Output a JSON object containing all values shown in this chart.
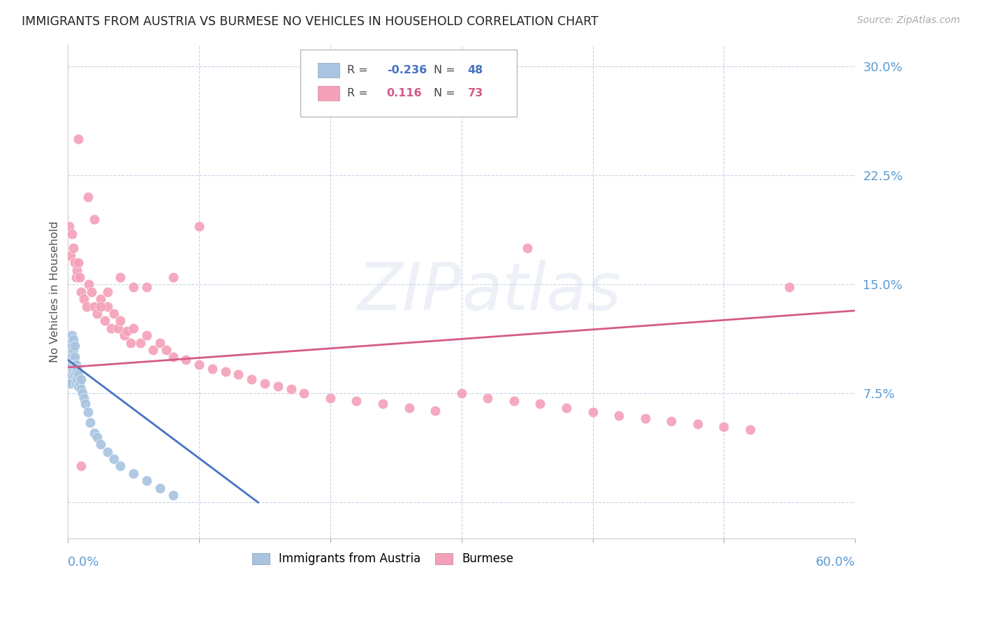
{
  "title": "IMMIGRANTS FROM AUSTRIA VS BURMESE NO VEHICLES IN HOUSEHOLD CORRELATION CHART",
  "source": "Source: ZipAtlas.com",
  "ylabel": "No Vehicles in Household",
  "yticks": [
    0.0,
    0.075,
    0.15,
    0.225,
    0.3
  ],
  "ytick_labels": [
    "",
    "7.5%",
    "15.0%",
    "22.5%",
    "30.0%"
  ],
  "xlim": [
    0.0,
    0.6
  ],
  "ylim": [
    -0.025,
    0.315
  ],
  "color_austria": "#a8c4e0",
  "color_burmese": "#f4a0b8",
  "color_austria_line": "#4472c4",
  "color_burmese_line": "#d45a8a",
  "color_yticks": "#5b9bd5",
  "austria_x": [
    0.001,
    0.001,
    0.001,
    0.001,
    0.002,
    0.002,
    0.002,
    0.002,
    0.002,
    0.002,
    0.003,
    0.003,
    0.003,
    0.003,
    0.003,
    0.004,
    0.004,
    0.004,
    0.004,
    0.005,
    0.005,
    0.005,
    0.005,
    0.006,
    0.006,
    0.006,
    0.007,
    0.007,
    0.008,
    0.008,
    0.009,
    0.01,
    0.01,
    0.011,
    0.012,
    0.013,
    0.015,
    0.017,
    0.02,
    0.022,
    0.025,
    0.03,
    0.035,
    0.04,
    0.05,
    0.06,
    0.07,
    0.08
  ],
  "austria_y": [
    0.1,
    0.095,
    0.09,
    0.085,
    0.11,
    0.105,
    0.098,
    0.092,
    0.088,
    0.082,
    0.115,
    0.108,
    0.1,
    0.095,
    0.088,
    0.112,
    0.105,
    0.098,
    0.09,
    0.108,
    0.1,
    0.095,
    0.088,
    0.095,
    0.09,
    0.082,
    0.092,
    0.085,
    0.088,
    0.08,
    0.082,
    0.085,
    0.078,
    0.075,
    0.072,
    0.068,
    0.062,
    0.055,
    0.048,
    0.045,
    0.04,
    0.035,
    0.03,
    0.025,
    0.02,
    0.015,
    0.01,
    0.005
  ],
  "burmese_x": [
    0.001,
    0.002,
    0.003,
    0.004,
    0.005,
    0.006,
    0.007,
    0.008,
    0.009,
    0.01,
    0.012,
    0.014,
    0.016,
    0.018,
    0.02,
    0.022,
    0.025,
    0.028,
    0.03,
    0.033,
    0.035,
    0.038,
    0.04,
    0.043,
    0.045,
    0.048,
    0.05,
    0.055,
    0.06,
    0.065,
    0.07,
    0.075,
    0.08,
    0.09,
    0.1,
    0.11,
    0.12,
    0.13,
    0.14,
    0.15,
    0.16,
    0.17,
    0.18,
    0.2,
    0.22,
    0.24,
    0.26,
    0.28,
    0.3,
    0.32,
    0.34,
    0.36,
    0.38,
    0.4,
    0.42,
    0.44,
    0.46,
    0.48,
    0.5,
    0.52,
    0.008,
    0.015,
    0.02,
    0.025,
    0.03,
    0.04,
    0.05,
    0.06,
    0.08,
    0.1,
    0.35,
    0.55,
    0.01
  ],
  "burmese_y": [
    0.19,
    0.17,
    0.185,
    0.175,
    0.165,
    0.155,
    0.16,
    0.165,
    0.155,
    0.145,
    0.14,
    0.135,
    0.15,
    0.145,
    0.135,
    0.13,
    0.14,
    0.125,
    0.135,
    0.12,
    0.13,
    0.12,
    0.125,
    0.115,
    0.118,
    0.11,
    0.12,
    0.11,
    0.115,
    0.105,
    0.11,
    0.105,
    0.1,
    0.098,
    0.095,
    0.092,
    0.09,
    0.088,
    0.085,
    0.082,
    0.08,
    0.078,
    0.075,
    0.072,
    0.07,
    0.068,
    0.065,
    0.063,
    0.075,
    0.072,
    0.07,
    0.068,
    0.065,
    0.062,
    0.06,
    0.058,
    0.056,
    0.054,
    0.052,
    0.05,
    0.25,
    0.21,
    0.195,
    0.135,
    0.145,
    0.155,
    0.148,
    0.148,
    0.155,
    0.19,
    0.175,
    0.148,
    0.025
  ],
  "austria_trend_x": [
    0.0,
    0.145
  ],
  "austria_trend_y": [
    0.098,
    0.0
  ],
  "burmese_trend_x": [
    0.0,
    0.6
  ],
  "burmese_trend_y": [
    0.093,
    0.132
  ]
}
